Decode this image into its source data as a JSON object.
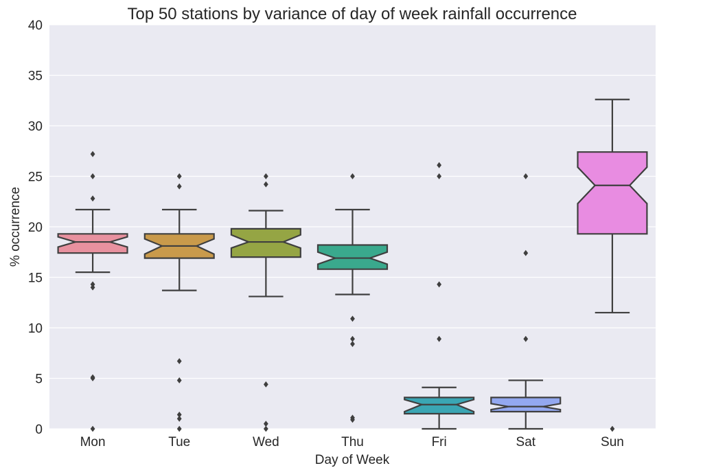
{
  "chart_data": {
    "type": "boxplot",
    "title": "Top 50 stations by variance of day of week rainfall occurrence",
    "xlabel": "Day of Week",
    "ylabel": "% occurrence",
    "ylim": [
      0,
      40
    ],
    "yticks": [
      0,
      5,
      10,
      15,
      20,
      25,
      30,
      35,
      40
    ],
    "grid": true,
    "notched": true,
    "categories": [
      "Mon",
      "Tue",
      "Wed",
      "Thu",
      "Fri",
      "Sat",
      "Sun"
    ],
    "series": [
      {
        "category": "Mon",
        "color": "#e8919f",
        "whisker_low": 15.5,
        "q1": 17.4,
        "median": 18.5,
        "q3": 19.3,
        "whisker_high": 21.7,
        "notch_low": 18.0,
        "notch_high": 19.0,
        "fliers": [
          27.2,
          25.0,
          22.8,
          14.3,
          14.0,
          5.1,
          5.0,
          0.0
        ]
      },
      {
        "category": "Tue",
        "color": "#c99a4b",
        "whisker_low": 13.7,
        "q1": 16.9,
        "median": 18.1,
        "q3": 19.3,
        "whisker_high": 21.7,
        "notch_low": 17.3,
        "notch_high": 18.8,
        "fliers": [
          25.0,
          24.0,
          6.7,
          4.8,
          1.4,
          1.0,
          0.0
        ]
      },
      {
        "category": "Wed",
        "color": "#95a544",
        "whisker_low": 13.1,
        "q1": 17.0,
        "median": 18.5,
        "q3": 19.8,
        "whisker_high": 21.6,
        "notch_low": 17.9,
        "notch_high": 19.2,
        "fliers": [
          25.0,
          24.2,
          4.4,
          0.5,
          0.0
        ]
      },
      {
        "category": "Thu",
        "color": "#3aa98d",
        "whisker_low": 13.3,
        "q1": 15.8,
        "median": 16.9,
        "q3": 18.2,
        "whisker_high": 21.7,
        "notch_low": 16.3,
        "notch_high": 17.5,
        "fliers": [
          25.0,
          10.9,
          8.9,
          8.4,
          1.1,
          0.9
        ]
      },
      {
        "category": "Fri",
        "color": "#3aa6b4",
        "whisker_low": 0.0,
        "q1": 1.5,
        "median": 2.4,
        "q3": 3.1,
        "whisker_high": 4.1,
        "notch_low": 1.7,
        "notch_high": 2.9,
        "fliers": [
          26.1,
          25.0,
          14.3,
          8.9
        ]
      },
      {
        "category": "Sat",
        "color": "#93a8f0",
        "whisker_low": 0.0,
        "q1": 1.7,
        "median": 2.2,
        "q3": 3.1,
        "whisker_high": 4.8,
        "notch_low": 1.9,
        "notch_high": 2.5,
        "fliers": [
          25.0,
          17.4,
          8.9
        ]
      },
      {
        "category": "Sun",
        "color": "#e88ce1",
        "whisker_low": 11.5,
        "q1": 19.3,
        "median": 24.1,
        "q3": 27.4,
        "whisker_high": 32.6,
        "notch_low": 22.3,
        "notch_high": 25.9,
        "fliers": [
          0.0
        ]
      }
    ]
  }
}
